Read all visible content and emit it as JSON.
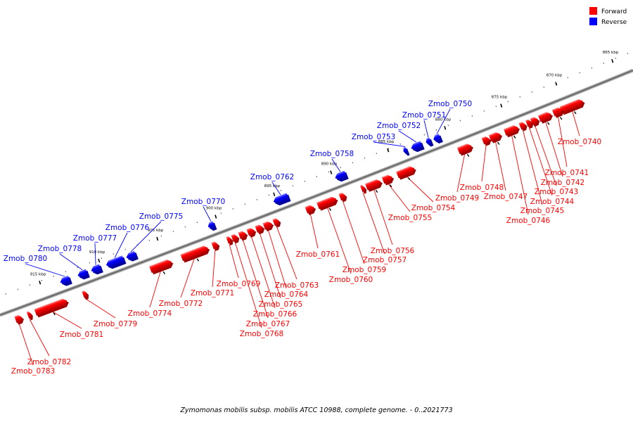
{
  "colors": {
    "forward": "#ff0000",
    "reverse": "#0000ff"
  },
  "legend": [
    {
      "label": "Forward",
      "strand": "forward"
    },
    {
      "label": "Reverse",
      "strand": "reverse"
    }
  ],
  "caption": "Zymomonas mobilis subsp. mobilis ATCC 10988, complete genome. - 0..2021773",
  "ticks": [
    "865 kbp",
    "870 kbp",
    "875 kbp",
    "880 kbp",
    "885 kbp",
    "890 kbp",
    "895 kbp",
    "900 kbp",
    "905 kbp",
    "910 kbp",
    "915 kbp"
  ],
  "genes": [
    {
      "name": "Zmob_0740",
      "strand": "forward"
    },
    {
      "name": "Zmob_0741",
      "strand": "forward"
    },
    {
      "name": "Zmob_0742",
      "strand": "forward"
    },
    {
      "name": "Zmob_0743",
      "strand": "forward"
    },
    {
      "name": "Zmob_0744",
      "strand": "forward"
    },
    {
      "name": "Zmob_0745",
      "strand": "forward"
    },
    {
      "name": "Zmob_0746",
      "strand": "forward"
    },
    {
      "name": "Zmob_0747",
      "strand": "forward"
    },
    {
      "name": "Zmob_0748",
      "strand": "forward"
    },
    {
      "name": "Zmob_0749",
      "strand": "forward"
    },
    {
      "name": "Zmob_0750",
      "strand": "reverse"
    },
    {
      "name": "Zmob_0751",
      "strand": "reverse"
    },
    {
      "name": "Zmob_0752",
      "strand": "reverse"
    },
    {
      "name": "Zmob_0753",
      "strand": "reverse"
    },
    {
      "name": "Zmob_0754",
      "strand": "forward"
    },
    {
      "name": "Zmob_0755",
      "strand": "forward"
    },
    {
      "name": "Zmob_0756",
      "strand": "forward"
    },
    {
      "name": "Zmob_0757",
      "strand": "forward"
    },
    {
      "name": "Zmob_0758",
      "strand": "reverse"
    },
    {
      "name": "Zmob_0759",
      "strand": "forward"
    },
    {
      "name": "Zmob_0760",
      "strand": "forward"
    },
    {
      "name": "Zmob_0761",
      "strand": "forward"
    },
    {
      "name": "Zmob_0762",
      "strand": "reverse"
    },
    {
      "name": "Zmob_0763",
      "strand": "forward"
    },
    {
      "name": "Zmob_0764",
      "strand": "forward"
    },
    {
      "name": "Zmob_0765",
      "strand": "forward"
    },
    {
      "name": "Zmob_0766",
      "strand": "forward"
    },
    {
      "name": "Zmob_0767",
      "strand": "forward"
    },
    {
      "name": "Zmob_0768",
      "strand": "forward"
    },
    {
      "name": "Zmob_0769",
      "strand": "forward"
    },
    {
      "name": "Zmob_0770",
      "strand": "reverse"
    },
    {
      "name": "Zmob_0771",
      "strand": "forward"
    },
    {
      "name": "Zmob_0772",
      "strand": "forward"
    },
    {
      "name": "Zmob_0774",
      "strand": "forward"
    },
    {
      "name": "Zmob_0775",
      "strand": "reverse"
    },
    {
      "name": "Zmob_0776",
      "strand": "reverse"
    },
    {
      "name": "Zmob_0777",
      "strand": "reverse"
    },
    {
      "name": "Zmob_0778",
      "strand": "reverse"
    },
    {
      "name": "Zmob_0779",
      "strand": "forward"
    },
    {
      "name": "Zmob_0780",
      "strand": "reverse"
    },
    {
      "name": "Zmob_0781",
      "strand": "forward"
    },
    {
      "name": "Zmob_0782",
      "strand": "forward"
    },
    {
      "name": "Zmob_0783",
      "strand": "forward"
    }
  ]
}
